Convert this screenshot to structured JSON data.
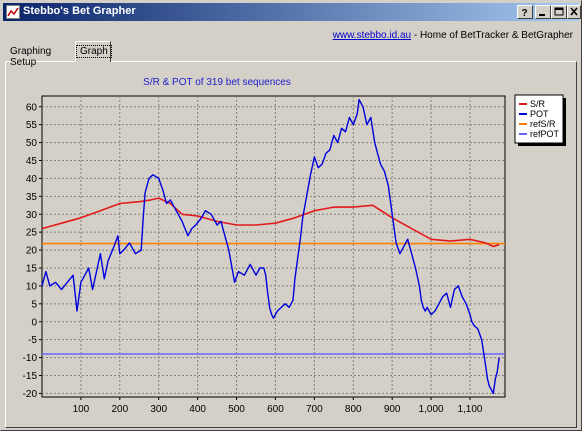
{
  "window": {
    "title": "Stebbo's Bet Grapher"
  },
  "header": {
    "link_text": "www.stebbo.id.au",
    "tagline": " - Home of BetTracker & BetGrapher"
  },
  "tabs": [
    {
      "label": "Graphing Setup",
      "selected": false
    },
    {
      "label": "Graph",
      "selected": true
    }
  ],
  "colors": {
    "sr": "#e31a1c",
    "pot": "#0000dd",
    "refsr": "#ff8000",
    "refpot": "#6666ff",
    "title": "#2020cc",
    "titlebar_start": "#0a246a",
    "titlebar_end": "#a6caf0"
  },
  "chart_data": {
    "type": "line",
    "title": "S/R & POT of 319 bet sequences",
    "xlabel": "",
    "ylabel": "",
    "xlim": [
      0,
      1190
    ],
    "ylim": [
      -21,
      63
    ],
    "xticks": [
      100,
      200,
      300,
      400,
      500,
      600,
      700,
      800,
      900,
      1000,
      1100
    ],
    "xtick_labels": [
      "100",
      "200",
      "300",
      "400",
      "500",
      "600",
      "700",
      "800",
      "900",
      "1,000",
      "1,100"
    ],
    "yticks": [
      -20,
      -15,
      -10,
      -5,
      0,
      5,
      10,
      15,
      20,
      25,
      30,
      35,
      40,
      45,
      50,
      55,
      60
    ],
    "grid": true,
    "legend_position": "top-right",
    "series": [
      {
        "name": "S/R",
        "color": "#e31a1c",
        "x": [
          0,
          50,
          100,
          150,
          200,
          250,
          280,
          300,
          330,
          360,
          400,
          450,
          500,
          550,
          600,
          650,
          700,
          750,
          800,
          850,
          900,
          950,
          1000,
          1050,
          1100,
          1140,
          1160,
          1175
        ],
        "y": [
          26,
          27.5,
          29,
          31,
          33,
          33.5,
          34,
          34.5,
          33,
          30,
          29.5,
          28,
          27,
          27,
          27.5,
          29,
          31,
          32,
          32,
          32.5,
          29,
          26,
          23,
          22.5,
          23,
          22,
          21,
          21.5
        ]
      },
      {
        "name": "POT",
        "color": "#0000dd",
        "x": [
          0,
          10,
          20,
          35,
          50,
          65,
          80,
          90,
          100,
          110,
          120,
          130,
          150,
          160,
          170,
          185,
          195,
          200,
          210,
          225,
          240,
          255,
          260,
          265,
          275,
          285,
          300,
          310,
          320,
          330,
          345,
          360,
          375,
          385,
          395,
          410,
          420,
          435,
          450,
          460,
          470,
          480,
          495,
          505,
          520,
          535,
          550,
          560,
          570,
          575,
          580,
          585,
          590,
          595,
          600,
          605,
          615,
          625,
          635,
          645,
          650,
          660,
          665,
          670,
          680,
          690,
          700,
          710,
          720,
          730,
          740,
          750,
          760,
          770,
          780,
          790,
          800,
          810,
          815,
          825,
          835,
          840,
          845,
          855,
          860,
          870,
          880,
          890,
          900,
          910,
          920,
          930,
          940,
          950,
          960,
          970,
          975,
          980,
          985,
          990,
          1000,
          1010,
          1020,
          1030,
          1040,
          1050,
          1060,
          1070,
          1080,
          1090,
          1100,
          1105,
          1110,
          1120,
          1130,
          1140,
          1145,
          1150,
          1155,
          1160,
          1165,
          1170,
          1175
        ],
        "y": [
          10,
          14,
          10,
          11,
          9,
          11,
          13,
          3,
          11,
          13,
          15,
          9,
          19,
          12,
          17,
          21,
          24,
          19,
          20,
          22,
          19,
          20,
          29,
          36,
          40,
          41,
          40,
          37,
          33,
          34,
          31,
          28,
          24,
          26,
          27,
          29,
          31,
          30,
          27,
          28,
          24,
          20,
          11,
          14,
          13,
          16,
          13,
          15,
          15,
          13,
          8,
          4,
          2,
          1,
          2,
          3,
          4,
          5,
          4,
          6,
          12,
          20,
          24,
          29,
          35,
          41,
          46,
          43,
          44,
          47,
          48,
          52,
          50,
          54,
          53,
          57,
          55,
          58,
          62,
          60,
          55,
          56,
          57,
          50,
          48,
          44,
          42,
          38,
          30,
          22,
          19,
          21,
          23,
          19,
          15,
          10,
          6,
          4,
          3,
          4,
          2,
          3,
          5,
          7,
          8,
          4,
          9,
          10,
          7,
          5,
          2,
          0,
          -1,
          -2,
          -5,
          -12,
          -16,
          -18,
          -19,
          -20,
          -16,
          -14,
          -10
        ]
      },
      {
        "name": "refS/R",
        "color": "#ff8000",
        "x": [
          0,
          1190
        ],
        "y": [
          21.8,
          21.8
        ]
      },
      {
        "name": "refPOT",
        "color": "#6666ff",
        "x": [
          0,
          1190
        ],
        "y": [
          -9,
          -9
        ]
      }
    ]
  }
}
